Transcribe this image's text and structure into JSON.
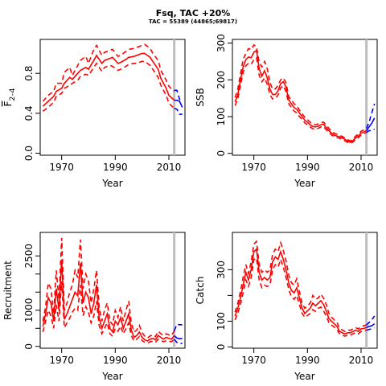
{
  "header": {
    "title": "Fsq, TAC +20%",
    "subtitle": "TAC = 55389 (44865;69817)"
  },
  "colors": {
    "historical": "#ff0000",
    "projection": "#0000ff",
    "vline": "#bebebe"
  },
  "chart_data": [
    {
      "type": "line",
      "id": "fbar",
      "xlabel": "Year",
      "ylabel": "F̄2–4",
      "ylabel_main": "F",
      "ylabel_sub": "2–4",
      "xlim": [
        1962,
        2016
      ],
      "ylim": [
        -0.02,
        1.14
      ],
      "xticks": [
        1970,
        1990,
        2010
      ],
      "yticks": [
        0.0,
        0.4,
        0.8
      ],
      "ytick_labels": [
        "0.0",
        "0.4",
        "0.8"
      ],
      "vline": 2012,
      "historical": {
        "x": [
          1963,
          1965,
          1967,
          1968,
          1970,
          1971,
          1973,
          1974,
          1976,
          1977,
          1979,
          1980,
          1982,
          1983,
          1985,
          1986,
          1988,
          1989,
          1991,
          1992,
          1994,
          1995,
          1997,
          1998,
          2000,
          2001,
          2003,
          2004,
          2006,
          2007,
          2009,
          2010,
          2012
        ],
        "median": [
          0.47,
          0.52,
          0.57,
          0.62,
          0.65,
          0.7,
          0.76,
          0.74,
          0.8,
          0.83,
          0.86,
          0.84,
          0.93,
          0.98,
          0.9,
          0.93,
          0.95,
          0.96,
          0.9,
          0.91,
          0.94,
          0.96,
          0.97,
          0.98,
          1.0,
          1.0,
          0.96,
          0.92,
          0.84,
          0.75,
          0.65,
          0.58,
          0.53
        ],
        "upper": [
          0.52,
          0.58,
          0.62,
          0.7,
          0.7,
          0.81,
          0.86,
          0.78,
          0.88,
          0.93,
          0.97,
          0.9,
          1.04,
          1.08,
          0.98,
          1.01,
          1.03,
          1.04,
          0.97,
          0.98,
          1.02,
          1.04,
          1.05,
          1.06,
          1.08,
          1.09,
          1.05,
          1.0,
          0.93,
          0.83,
          0.73,
          0.67,
          0.62
        ],
        "lower": [
          0.42,
          0.46,
          0.51,
          0.57,
          0.6,
          0.65,
          0.68,
          0.7,
          0.73,
          0.77,
          0.79,
          0.78,
          0.86,
          0.9,
          0.82,
          0.86,
          0.88,
          0.87,
          0.83,
          0.84,
          0.87,
          0.89,
          0.9,
          0.9,
          0.92,
          0.92,
          0.88,
          0.84,
          0.76,
          0.68,
          0.58,
          0.5,
          0.45
        ]
      },
      "projection": {
        "x": [
          2012,
          2013,
          2014,
          2015
        ],
        "median": [
          0.53,
          0.53,
          0.52,
          0.46
        ],
        "upper": [
          0.63,
          0.63,
          0.54,
          0.53
        ],
        "lower": [
          0.45,
          0.44,
          0.39,
          0.39
        ]
      }
    },
    {
      "type": "line",
      "id": "ssb",
      "xlabel": "Year",
      "ylabel": "SSB",
      "xlim": [
        1962,
        2016
      ],
      "ylim": [
        -5,
        310
      ],
      "xticks": [
        1970,
        1990,
        2010
      ],
      "yticks": [
        0,
        100,
        200,
        300
      ],
      "ytick_labels": [
        "0",
        "100",
        "200",
        "300"
      ],
      "vline": 2012,
      "historical": {
        "x": [
          1963,
          1964,
          1965,
          1966,
          1967,
          1968,
          1969,
          1970,
          1971,
          1972,
          1973,
          1974,
          1975,
          1976,
          1977,
          1978,
          1979,
          1980,
          1981,
          1982,
          1983,
          1984,
          1985,
          1986,
          1987,
          1988,
          1989,
          1990,
          1991,
          1992,
          1993,
          1994,
          1995,
          1996,
          1997,
          1998,
          1999,
          2000,
          2001,
          2002,
          2003,
          2004,
          2005,
          2006,
          2007,
          2008,
          2009,
          2010,
          2011,
          2012
        ],
        "median": [
          140,
          160,
          200,
          235,
          255,
          262,
          260,
          275,
          280,
          230,
          210,
          225,
          205,
          175,
          160,
          160,
          170,
          190,
          195,
          180,
          145,
          135,
          125,
          120,
          110,
          100,
          90,
          85,
          78,
          73,
          72,
          74,
          78,
          79,
          70,
          62,
          55,
          50,
          47,
          45,
          42,
          38,
          33,
          30,
          35,
          42,
          48,
          55,
          58,
          62
        ],
        "upper": [
          152,
          175,
          215,
          255,
          272,
          285,
          282,
          295,
          290,
          248,
          235,
          250,
          230,
          192,
          175,
          175,
          185,
          200,
          205,
          192,
          155,
          145,
          135,
          130,
          118,
          108,
          98,
          92,
          85,
          80,
          78,
          80,
          84,
          85,
          77,
          68,
          60,
          55,
          52,
          49,
          46,
          42,
          37,
          34,
          39,
          47,
          53,
          60,
          64,
          68
        ],
        "lower": [
          130,
          148,
          185,
          220,
          238,
          245,
          242,
          255,
          260,
          212,
          195,
          205,
          188,
          160,
          148,
          150,
          158,
          178,
          184,
          168,
          135,
          125,
          115,
          110,
          100,
          92,
          83,
          78,
          72,
          67,
          66,
          68,
          72,
          73,
          64,
          57,
          50,
          46,
          43,
          41,
          38,
          34,
          30,
          27,
          31,
          38,
          43,
          50,
          53,
          57
        ]
      },
      "projection": {
        "x": [
          2012,
          2013,
          2014,
          2015
        ],
        "median": [
          62,
          72,
          82,
          96
        ],
        "upper": [
          68,
          85,
          110,
          135
        ],
        "lower": [
          57,
          62,
          62,
          66
        ]
      }
    },
    {
      "type": "line",
      "id": "recruitment",
      "xlabel": "Year",
      "ylabel": "Recruitment",
      "xlim": [
        1962,
        2016
      ],
      "ylim": [
        -50,
        3150
      ],
      "xticks": [
        1970,
        1990,
        2010
      ],
      "yticks": [
        0,
        1000,
        2500
      ],
      "ytick_labels": [
        "0",
        "1000",
        "2500"
      ],
      "extra_ticks": [
        500,
        1500,
        2000
      ],
      "vline": 2012,
      "historical": {
        "x": [
          1963,
          1964,
          1965,
          1966,
          1967,
          1968,
          1969,
          1970,
          1971,
          1972,
          1973,
          1974,
          1975,
          1976,
          1977,
          1978,
          1979,
          1980,
          1981,
          1982,
          1983,
          1984,
          1985,
          1986,
          1987,
          1988,
          1989,
          1990,
          1991,
          1992,
          1993,
          1994,
          1995,
          1996,
          1997,
          1998,
          1999,
          2000,
          2001,
          2002,
          2003,
          2004,
          2005,
          2006,
          2007,
          2008,
          2009,
          2010,
          2011,
          2012
        ],
        "median": [
          550,
          900,
          1350,
          1200,
          700,
          1600,
          1000,
          2400,
          750,
          900,
          1100,
          1300,
          1500,
          1400,
          2300,
          1200,
          1500,
          1350,
          900,
          1200,
          1700,
          800,
          500,
          700,
          900,
          500,
          400,
          700,
          600,
          800,
          500,
          700,
          900,
          450,
          250,
          300,
          400,
          250,
          180,
          150,
          200,
          220,
          180,
          300,
          250,
          200,
          250,
          220,
          200,
          300
        ],
        "upper": [
          700,
          1100,
          1750,
          1600,
          900,
          2100,
          1300,
          3000,
          1000,
          1200,
          1500,
          1700,
          2100,
          1900,
          2950,
          1600,
          2000,
          1800,
          1200,
          1600,
          2100,
          1100,
          700,
          1000,
          1200,
          700,
          600,
          1000,
          800,
          1100,
          700,
          1000,
          1250,
          650,
          400,
          450,
          580,
          380,
          280,
          230,
          290,
          320,
          270,
          420,
          350,
          300,
          350,
          320,
          300,
          430
        ],
        "lower": [
          400,
          700,
          1000,
          850,
          500,
          1150,
          700,
          1800,
          520,
          650,
          780,
          950,
          1050,
          1000,
          1700,
          850,
          1100,
          950,
          650,
          850,
          1250,
          580,
          350,
          500,
          650,
          350,
          280,
          500,
          420,
          560,
          350,
          500,
          650,
          300,
          150,
          200,
          270,
          160,
          110,
          90,
          130,
          140,
          110,
          200,
          160,
          130,
          160,
          140,
          130,
          200
        ]
      },
      "projection": {
        "x": [
          2012,
          2013,
          2014,
          2015
        ],
        "median": [
          300,
          230,
          210,
          220
        ],
        "upper": [
          430,
          610,
          600,
          600
        ],
        "lower": [
          200,
          110,
          80,
          80
        ]
      }
    },
    {
      "type": "line",
      "id": "catch",
      "xlabel": "Year",
      "ylabel": "Catch",
      "xlim": [
        1962,
        2016
      ],
      "ylim": [
        -5,
        445
      ],
      "xticks": [
        1970,
        1990,
        2010
      ],
      "yticks": [
        0,
        100,
        300
      ],
      "ytick_labels": [
        "0",
        "100",
        "300"
      ],
      "extra_ticks": [
        200
      ],
      "vline": 2012,
      "historical": {
        "x": [
          1963,
          1964,
          1965,
          1966,
          1967,
          1968,
          1969,
          1970,
          1971,
          1972,
          1973,
          1974,
          1975,
          1976,
          1977,
          1978,
          1979,
          1980,
          1981,
          1982,
          1983,
          1984,
          1985,
          1986,
          1987,
          1988,
          1989,
          1990,
          1991,
          1992,
          1993,
          1994,
          1995,
          1996,
          1997,
          1998,
          1999,
          2000,
          2001,
          2002,
          2003,
          2004,
          2005,
          2006,
          2007,
          2008,
          2009,
          2010,
          2011,
          2012
        ],
        "median": [
          120,
          150,
          190,
          240,
          290,
          260,
          300,
          370,
          380,
          290,
          260,
          270,
          260,
          270,
          330,
          350,
          340,
          370,
          340,
          300,
          250,
          220,
          210,
          230,
          190,
          150,
          130,
          140,
          150,
          170,
          160,
          170,
          180,
          165,
          140,
          110,
          100,
          90,
          80,
          60,
          55,
          50,
          55,
          55,
          60,
          65,
          60,
          70,
          72,
          75
        ],
        "upper": [
          135,
          170,
          215,
          270,
          320,
          285,
          330,
          400,
          410,
          320,
          290,
          300,
          290,
          300,
          360,
          380,
          370,
          405,
          375,
          335,
          280,
          250,
          240,
          265,
          215,
          170,
          150,
          160,
          170,
          200,
          185,
          190,
          205,
          190,
          165,
          130,
          115,
          105,
          95,
          72,
          66,
          60,
          65,
          65,
          70,
          75,
          70,
          80,
          82,
          85
        ],
        "lower": [
          105,
          130,
          165,
          210,
          260,
          235,
          270,
          340,
          345,
          260,
          230,
          240,
          235,
          240,
          300,
          320,
          310,
          340,
          310,
          270,
          225,
          195,
          185,
          200,
          165,
          130,
          115,
          122,
          130,
          145,
          138,
          150,
          155,
          140,
          120,
          95,
          85,
          77,
          68,
          50,
          46,
          42,
          46,
          46,
          51,
          55,
          51,
          60,
          62,
          65
        ]
      },
      "projection": {
        "x": [
          2012,
          2013,
          2014,
          2015
        ],
        "median": [
          75,
          80,
          82,
          90
        ],
        "upper": [
          85,
          95,
          105,
          120
        ],
        "lower": [
          65,
          68,
          70,
          74
        ]
      }
    }
  ]
}
